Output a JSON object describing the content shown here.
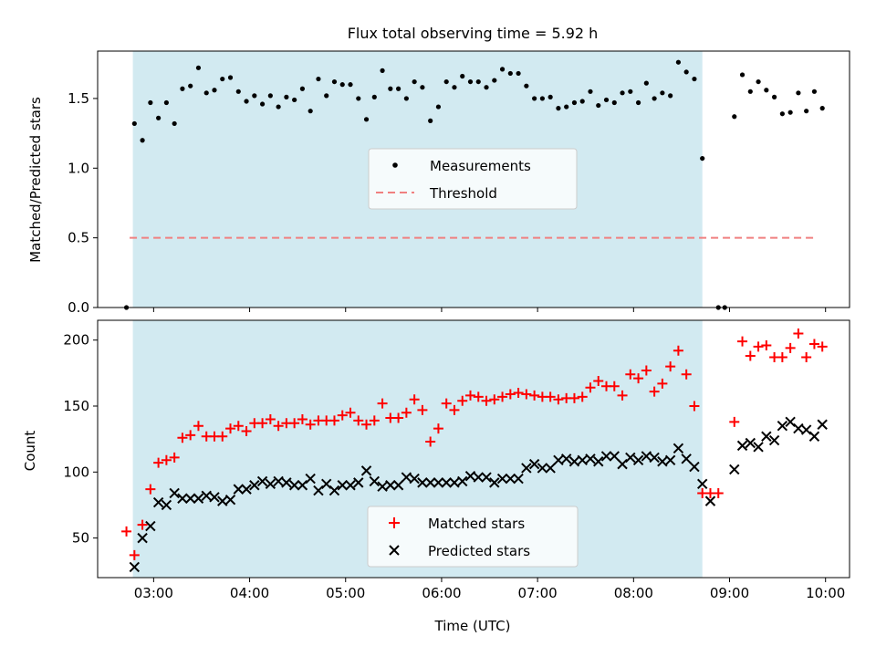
{
  "title": "Flux total observing time = 5.92 h",
  "xlabel": "Time (UTC)",
  "colors": {
    "shade": "#add8e6",
    "matched": "#ff0000",
    "predicted": "#000000",
    "measurement": "#000000",
    "threshold": "#f08080"
  },
  "x_ticks": [
    "03:00",
    "04:00",
    "05:00",
    "06:00",
    "07:00",
    "08:00",
    "09:00",
    "10:00"
  ],
  "chart_data": [
    {
      "type": "scatter",
      "ylabel": "Matched/Predicted stars",
      "xlim": [
        "02:25",
        "10:15"
      ],
      "ylim": [
        0,
        1.84
      ],
      "y_ticks": [
        "0.0",
        "0.5",
        "1.0",
        "1.5"
      ],
      "shaded_span": [
        "02:47",
        "08:43"
      ],
      "threshold": {
        "value": 0.5,
        "x_start": "02:45",
        "x_end": "09:53"
      },
      "legend": {
        "position": "center",
        "entries": [
          "Measurements",
          "Threshold"
        ]
      },
      "series": [
        {
          "name": "Measurements",
          "marker": "dot",
          "points": [
            [
              "02:43",
              0.0
            ],
            [
              "02:48",
              1.32
            ],
            [
              "02:53",
              1.2
            ],
            [
              "02:58",
              1.47
            ],
            [
              "03:03",
              1.36
            ],
            [
              "03:08",
              1.47
            ],
            [
              "03:13",
              1.32
            ],
            [
              "03:18",
              1.57
            ],
            [
              "03:23",
              1.59
            ],
            [
              "03:28",
              1.72
            ],
            [
              "03:33",
              1.54
            ],
            [
              "03:38",
              1.56
            ],
            [
              "03:43",
              1.64
            ],
            [
              "03:48",
              1.65
            ],
            [
              "03:53",
              1.55
            ],
            [
              "03:58",
              1.48
            ],
            [
              "04:03",
              1.52
            ],
            [
              "04:08",
              1.46
            ],
            [
              "04:13",
              1.52
            ],
            [
              "04:18",
              1.44
            ],
            [
              "04:23",
              1.51
            ],
            [
              "04:28",
              1.49
            ],
            [
              "04:33",
              1.57
            ],
            [
              "04:38",
              1.41
            ],
            [
              "04:43",
              1.64
            ],
            [
              "04:48",
              1.52
            ],
            [
              "04:53",
              1.62
            ],
            [
              "04:58",
              1.6
            ],
            [
              "05:03",
              1.6
            ],
            [
              "05:08",
              1.5
            ],
            [
              "05:13",
              1.35
            ],
            [
              "05:18",
              1.51
            ],
            [
              "05:23",
              1.7
            ],
            [
              "05:28",
              1.57
            ],
            [
              "05:33",
              1.57
            ],
            [
              "05:38",
              1.5
            ],
            [
              "05:43",
              1.62
            ],
            [
              "05:48",
              1.58
            ],
            [
              "05:53",
              1.34
            ],
            [
              "05:58",
              1.44
            ],
            [
              "06:03",
              1.62
            ],
            [
              "06:08",
              1.58
            ],
            [
              "06:13",
              1.66
            ],
            [
              "06:18",
              1.62
            ],
            [
              "06:23",
              1.62
            ],
            [
              "06:28",
              1.58
            ],
            [
              "06:33",
              1.63
            ],
            [
              "06:38",
              1.71
            ],
            [
              "06:43",
              1.68
            ],
            [
              "06:48",
              1.68
            ],
            [
              "06:53",
              1.59
            ],
            [
              "06:58",
              1.5
            ],
            [
              "07:03",
              1.5
            ],
            [
              "07:08",
              1.51
            ],
            [
              "07:13",
              1.43
            ],
            [
              "07:18",
              1.44
            ],
            [
              "07:23",
              1.47
            ],
            [
              "07:28",
              1.48
            ],
            [
              "07:33",
              1.55
            ],
            [
              "07:38",
              1.45
            ],
            [
              "07:43",
              1.49
            ],
            [
              "07:48",
              1.47
            ],
            [
              "07:53",
              1.54
            ],
            [
              "07:58",
              1.55
            ],
            [
              "08:03",
              1.47
            ],
            [
              "08:08",
              1.61
            ],
            [
              "08:13",
              1.5
            ],
            [
              "08:18",
              1.54
            ],
            [
              "08:23",
              1.52
            ],
            [
              "08:28",
              1.76
            ],
            [
              "08:33",
              1.69
            ],
            [
              "08:38",
              1.64
            ],
            [
              "08:43",
              1.07
            ],
            [
              "08:53",
              0.0
            ],
            [
              "08:57",
              0.0
            ],
            [
              "09:03",
              1.37
            ],
            [
              "09:08",
              1.67
            ],
            [
              "09:13",
              1.55
            ],
            [
              "09:18",
              1.62
            ],
            [
              "09:23",
              1.56
            ],
            [
              "09:28",
              1.51
            ],
            [
              "09:33",
              1.39
            ],
            [
              "09:38",
              1.4
            ],
            [
              "09:43",
              1.54
            ],
            [
              "09:48",
              1.41
            ],
            [
              "09:53",
              1.55
            ],
            [
              "09:58",
              1.43
            ]
          ]
        }
      ]
    },
    {
      "type": "scatter",
      "ylabel": "Count",
      "xlim": [
        "02:25",
        "10:15"
      ],
      "ylim": [
        20,
        215
      ],
      "y_ticks": [
        "50",
        "100",
        "150",
        "200"
      ],
      "shaded_span": [
        "02:47",
        "08:43"
      ],
      "legend": {
        "position": "bottom-center",
        "entries": [
          "Matched stars",
          "Predicted stars"
        ]
      },
      "series": [
        {
          "name": "Matched stars",
          "marker": "+",
          "points": [
            [
              "02:43",
              55
            ],
            [
              "02:48",
              37
            ],
            [
              "02:53",
              60
            ],
            [
              "02:58",
              87
            ],
            [
              "03:03",
              107
            ],
            [
              "03:08",
              109
            ],
            [
              "03:13",
              111
            ],
            [
              "03:18",
              126
            ],
            [
              "03:23",
              128
            ],
            [
              "03:28",
              135
            ],
            [
              "03:33",
              127
            ],
            [
              "03:38",
              127
            ],
            [
              "03:43",
              127
            ],
            [
              "03:48",
              133
            ],
            [
              "03:53",
              135
            ],
            [
              "03:58",
              131
            ],
            [
              "04:03",
              137
            ],
            [
              "04:08",
              137
            ],
            [
              "04:13",
              140
            ],
            [
              "04:18",
              135
            ],
            [
              "04:23",
              137
            ],
            [
              "04:28",
              137
            ],
            [
              "04:33",
              140
            ],
            [
              "04:38",
              136
            ],
            [
              "04:43",
              139
            ],
            [
              "04:48",
              139
            ],
            [
              "04:53",
              139
            ],
            [
              "04:58",
              143
            ],
            [
              "05:03",
              145
            ],
            [
              "05:08",
              139
            ],
            [
              "05:13",
              136
            ],
            [
              "05:18",
              139
            ],
            [
              "05:23",
              152
            ],
            [
              "05:28",
              141
            ],
            [
              "05:33",
              141
            ],
            [
              "05:38",
              145
            ],
            [
              "05:43",
              155
            ],
            [
              "05:48",
              147
            ],
            [
              "05:53",
              123
            ],
            [
              "05:58",
              133
            ],
            [
              "06:03",
              152
            ],
            [
              "06:08",
              147
            ],
            [
              "06:13",
              154
            ],
            [
              "06:18",
              158
            ],
            [
              "06:23",
              157
            ],
            [
              "06:28",
              154
            ],
            [
              "06:33",
              155
            ],
            [
              "06:38",
              157
            ],
            [
              "06:43",
              159
            ],
            [
              "06:48",
              160
            ],
            [
              "06:53",
              159
            ],
            [
              "06:58",
              158
            ],
            [
              "07:03",
              157
            ],
            [
              "07:08",
              157
            ],
            [
              "07:13",
              155
            ],
            [
              "07:18",
              156
            ],
            [
              "07:23",
              156
            ],
            [
              "07:28",
              157
            ],
            [
              "07:33",
              164
            ],
            [
              "07:38",
              169
            ],
            [
              "07:43",
              165
            ],
            [
              "07:48",
              165
            ],
            [
              "07:53",
              158
            ],
            [
              "07:58",
              174
            ],
            [
              "08:03",
              171
            ],
            [
              "08:08",
              177
            ],
            [
              "08:13",
              161
            ],
            [
              "08:18",
              167
            ],
            [
              "08:23",
              180
            ],
            [
              "08:28",
              192
            ],
            [
              "08:33",
              174
            ],
            [
              "08:38",
              150
            ],
            [
              "08:43",
              84
            ],
            [
              "08:48",
              84
            ],
            [
              "08:53",
              84
            ],
            [
              "09:03",
              138
            ],
            [
              "09:08",
              199
            ],
            [
              "09:13",
              188
            ],
            [
              "09:18",
              195
            ],
            [
              "09:23",
              196
            ],
            [
              "09:28",
              187
            ],
            [
              "09:33",
              187
            ],
            [
              "09:38",
              194
            ],
            [
              "09:43",
              205
            ],
            [
              "09:48",
              187
            ],
            [
              "09:53",
              197
            ],
            [
              "09:58",
              195
            ]
          ]
        },
        {
          "name": "Predicted stars",
          "marker": "x",
          "points": [
            [
              "02:48",
              28
            ],
            [
              "02:53",
              50
            ],
            [
              "02:58",
              59
            ],
            [
              "03:03",
              77
            ],
            [
              "03:08",
              75
            ],
            [
              "03:13",
              84
            ],
            [
              "03:18",
              80
            ],
            [
              "03:23",
              80
            ],
            [
              "03:28",
              80
            ],
            [
              "03:33",
              82
            ],
            [
              "03:38",
              81
            ],
            [
              "03:43",
              78
            ],
            [
              "03:48",
              79
            ],
            [
              "03:53",
              87
            ],
            [
              "03:58",
              87
            ],
            [
              "04:03",
              90
            ],
            [
              "04:08",
              93
            ],
            [
              "04:13",
              91
            ],
            [
              "04:18",
              93
            ],
            [
              "04:23",
              92
            ],
            [
              "04:28",
              90
            ],
            [
              "04:33",
              90
            ],
            [
              "04:38",
              95
            ],
            [
              "04:43",
              86
            ],
            [
              "04:48",
              91
            ],
            [
              "04:53",
              86
            ],
            [
              "04:58",
              90
            ],
            [
              "05:03",
              90
            ],
            [
              "05:08",
              92
            ],
            [
              "05:13",
              101
            ],
            [
              "05:18",
              93
            ],
            [
              "05:23",
              89
            ],
            [
              "05:28",
              90
            ],
            [
              "05:33",
              90
            ],
            [
              "05:38",
              96
            ],
            [
              "05:43",
              95
            ],
            [
              "05:48",
              92
            ],
            [
              "05:53",
              92
            ],
            [
              "05:58",
              92
            ],
            [
              "06:03",
              92
            ],
            [
              "06:08",
              92
            ],
            [
              "06:13",
              93
            ],
            [
              "06:18",
              97
            ],
            [
              "06:23",
              96
            ],
            [
              "06:28",
              96
            ],
            [
              "06:33",
              92
            ],
            [
              "06:38",
              95
            ],
            [
              "06:43",
              95
            ],
            [
              "06:48",
              95
            ],
            [
              "06:53",
              103
            ],
            [
              "06:58",
              106
            ],
            [
              "07:03",
              103
            ],
            [
              "07:08",
              103
            ],
            [
              "07:13",
              109
            ],
            [
              "07:18",
              110
            ],
            [
              "07:23",
              108
            ],
            [
              "07:28",
              109
            ],
            [
              "07:33",
              110
            ],
            [
              "07:38",
              108
            ],
            [
              "07:43",
              112
            ],
            [
              "07:48",
              112
            ],
            [
              "07:53",
              106
            ],
            [
              "07:58",
              111
            ],
            [
              "08:03",
              109
            ],
            [
              "08:08",
              112
            ],
            [
              "08:13",
              111
            ],
            [
              "08:18",
              108
            ],
            [
              "08:23",
              109
            ],
            [
              "08:28",
              118
            ],
            [
              "08:33",
              110
            ],
            [
              "08:38",
              104
            ],
            [
              "08:43",
              91
            ],
            [
              "08:48",
              78
            ],
            [
              "09:03",
              102
            ],
            [
              "09:08",
              120
            ],
            [
              "09:13",
              122
            ],
            [
              "09:18",
              119
            ],
            [
              "09:23",
              127
            ],
            [
              "09:28",
              124
            ],
            [
              "09:33",
              135
            ],
            [
              "09:38",
              138
            ],
            [
              "09:43",
              133
            ],
            [
              "09:48",
              132
            ],
            [
              "09:53",
              127
            ],
            [
              "09:58",
              136
            ]
          ]
        }
      ]
    }
  ]
}
